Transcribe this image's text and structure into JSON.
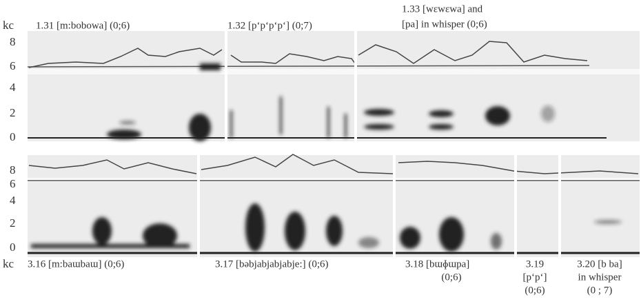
{
  "axis_unit_top": "kc",
  "axis_unit_bottom": "kc",
  "top_ticks": [
    "8",
    "6",
    "4",
    "2",
    "0"
  ],
  "bottom_ticks": [
    "8",
    "6",
    "4",
    "2",
    "0"
  ],
  "top_captions": [
    {
      "lines": [
        "1.31 [m:bobowa] (0;6)"
      ]
    },
    {
      "lines": [
        "1.32 [pʻpʻpʻpʻ] (0;7)"
      ]
    },
    {
      "lines": [
        "1.33 [wɛwɛwa] and",
        "[pa] in whisper (0;6)"
      ]
    }
  ],
  "bottom_captions": [
    {
      "lines": [
        "3.16 [m:baɯbaɯ] (0;6)"
      ]
    },
    {
      "lines": [
        "3.17 [bəbjabjabjabje:] (0;6)"
      ]
    },
    {
      "lines": [
        "3.18 [bɯɸɯpa]",
        "(0;6)"
      ]
    },
    {
      "lines": [
        "3.19",
        "[pʻpʻ]",
        "(0;6)"
      ]
    },
    {
      "lines": [
        "3.20 [b ba]",
        "in whisper",
        "(0 ; 7)"
      ]
    }
  ]
}
